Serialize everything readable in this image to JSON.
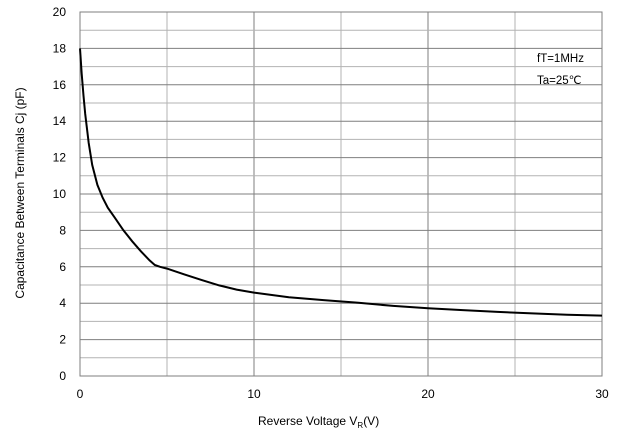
{
  "chart_data": {
    "type": "line",
    "xlabel_main": "Reverse Voltage  V",
    "xlabel_sub": "R",
    "xlabel_tail": "(V)",
    "ylabel": "Capacitance Between Terminals  Cj (pF)",
    "xlim": [
      0,
      30
    ],
    "ylim": [
      0,
      20
    ],
    "x_ticks": [
      0,
      10,
      20,
      30
    ],
    "y_ticks": [
      0,
      2,
      4,
      6,
      8,
      10,
      12,
      14,
      16,
      18,
      20
    ],
    "x_minor_step": 5,
    "y_minor_step": 1,
    "grid": true,
    "annotations": [
      "fT=1MHz",
      "Ta=25℃"
    ],
    "series": [
      {
        "x": [
          0,
          0.1,
          0.2,
          0.3,
          0.5,
          0.7,
          1.0,
          1.3,
          1.6,
          2.0,
          2.5,
          3.0,
          3.5,
          4.0,
          4.3,
          4.6,
          5,
          6,
          7,
          8,
          9,
          10,
          12,
          14,
          16,
          18,
          20,
          22,
          24,
          26,
          28,
          30
        ],
        "y": [
          18.0,
          16.6,
          15.4,
          14.4,
          12.8,
          11.6,
          10.5,
          9.8,
          9.25,
          8.7,
          8.0,
          7.4,
          6.85,
          6.35,
          6.1,
          6.0,
          5.9,
          5.58,
          5.27,
          4.98,
          4.75,
          4.58,
          4.33,
          4.17,
          4.02,
          3.85,
          3.72,
          3.62,
          3.52,
          3.44,
          3.37,
          3.32
        ]
      }
    ]
  }
}
